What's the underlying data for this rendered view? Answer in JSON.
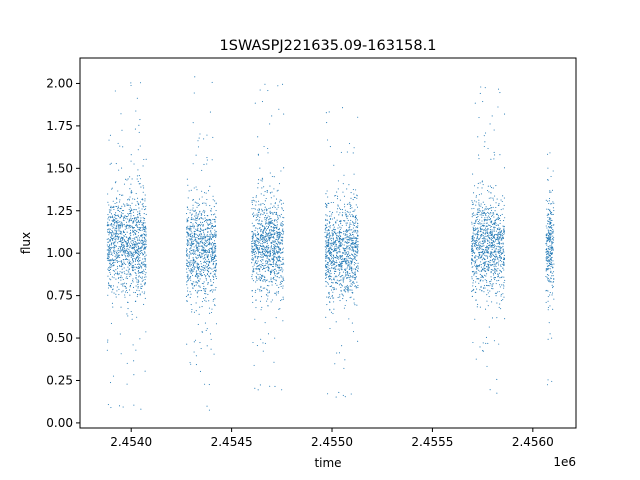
{
  "chart_data": {
    "type": "scatter",
    "title": "1SWASPJ221635.09-163158.1",
    "xlabel": "time",
    "ylabel": "flux",
    "x_offset_label": "1e6",
    "xlim": [
      2453745,
      2456215
    ],
    "ylim": [
      -0.03,
      2.15
    ],
    "x_ticks": [
      2454000,
      2454500,
      2455000,
      2455500,
      2456000
    ],
    "x_tick_labels": [
      "2.4540",
      "2.4545",
      "2.4550",
      "2.4555",
      "2.4560"
    ],
    "y_ticks": [
      0.0,
      0.25,
      0.5,
      0.75,
      1.0,
      1.25,
      1.5,
      1.75,
      2.0
    ],
    "y_tick_labels": [
      "0.00",
      "0.25",
      "0.50",
      "0.75",
      "1.00",
      "1.25",
      "1.50",
      "1.75",
      "2.00"
    ],
    "grid": false,
    "marker_color": "#1f77b4",
    "series": [
      {
        "observing_seasons": [
          {
            "x_range": [
              2453880,
              2454075
            ],
            "median_flux": 1.05,
            "flux_range": [
              0.08,
              2.03
            ]
          },
          {
            "x_range": [
              2454275,
              2454425
            ],
            "median_flux": 1.02,
            "flux_range": [
              0.06,
              2.05
            ]
          },
          {
            "x_range": [
              2454600,
              2454760
            ],
            "median_flux": 1.05,
            "flux_range": [
              0.18,
              2.01
            ]
          },
          {
            "x_range": [
              2454965,
              2455130
            ],
            "median_flux": 1.02,
            "flux_range": [
              0.15,
              1.87
            ]
          },
          {
            "x_range": [
              2455695,
              2455860
            ],
            "median_flux": 1.05,
            "flux_range": [
              0.16,
              1.99
            ]
          },
          {
            "x_range": [
              2456065,
              2456105
            ],
            "median_flux": 1.05,
            "flux_range": [
              0.21,
              1.98
            ]
          }
        ]
      }
    ]
  }
}
